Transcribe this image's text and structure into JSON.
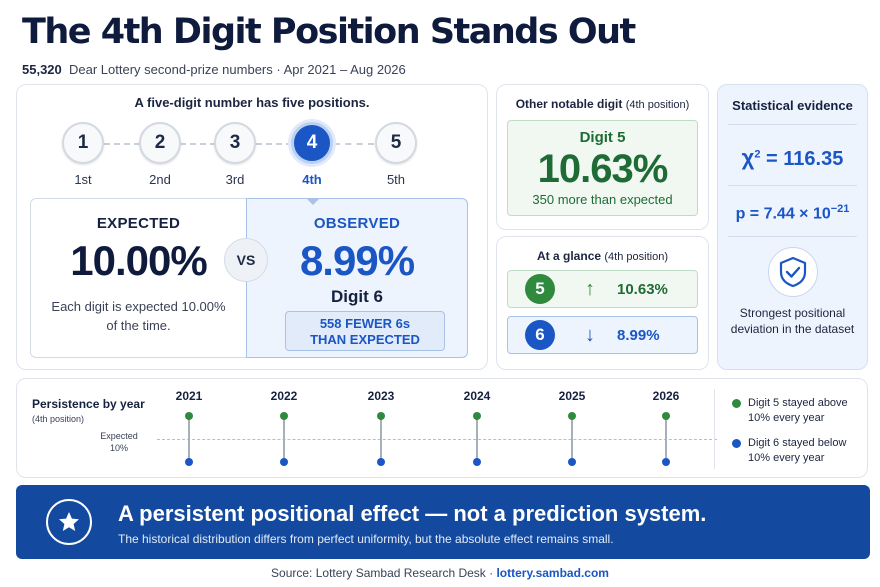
{
  "header": {
    "title": "The 4th Digit Position Stands Out",
    "subtitle_count": "55,320",
    "subtitle_rest": "Dear Lottery second-prize numbers · Apr 2021 – Aug 2026"
  },
  "positions": {
    "heading": "A five-digit number has five positions.",
    "items": [
      {
        "num": "1",
        "label": "1st"
      },
      {
        "num": "2",
        "label": "2nd"
      },
      {
        "num": "3",
        "label": "3rd"
      },
      {
        "num": "4",
        "label": "4th"
      },
      {
        "num": "5",
        "label": "5th"
      }
    ],
    "active_index": 3
  },
  "expected": {
    "heading": "EXPECTED",
    "value": "10.00%",
    "note": "Each digit is expected 10.00% of the time."
  },
  "vs_label": "VS",
  "observed": {
    "heading": "OBSERVED",
    "value": "8.99%",
    "digit": "Digit 6",
    "fewer_line1": "558 FEWER 6s",
    "fewer_line2": "THAN EXPECTED"
  },
  "notable": {
    "heading": "Other notable digit",
    "heading_sub": "(4th position)",
    "digit": "Digit 5",
    "value": "10.63%",
    "more": "350 more than expected"
  },
  "glance": {
    "heading": "At a glance",
    "heading_sub": "(4th position)",
    "rows": [
      {
        "digit": "5",
        "arrow": "↑",
        "pct": "10.63%"
      },
      {
        "digit": "6",
        "arrow": "↓",
        "pct": "8.99%"
      }
    ]
  },
  "stats": {
    "heading": "Statistical evidence",
    "chi_label": "χ",
    "chi_exp": "2",
    "chi_value": "= 116.35",
    "p_label": "p = 7.44 × 10",
    "p_exp": "−21",
    "note": "Strongest positional deviation in the dataset"
  },
  "persistence": {
    "title": "Persistence by year",
    "subtitle": "(4th position)",
    "expected_label_1": "Expected",
    "expected_label_2": "10%",
    "years": [
      "2021",
      "2022",
      "2023",
      "2024",
      "2025",
      "2026"
    ],
    "legend_green": "Digit 5 stayed above 10% every year",
    "legend_blue": "Digit 6 stayed below 10% every year"
  },
  "banner": {
    "headline": "A persistent positional effect — not a prediction system.",
    "sub": "The historical distribution differs from perfect uniformity, but the absolute effect remains small."
  },
  "source": {
    "prefix": "Source: Lottery Sambad Research Desk · ",
    "link": "lottery.sambad.com"
  },
  "colors": {
    "navy": "#0e1b3d",
    "blue": "#1a56c4",
    "green": "#2f8a3e",
    "banner": "#134a9f"
  }
}
